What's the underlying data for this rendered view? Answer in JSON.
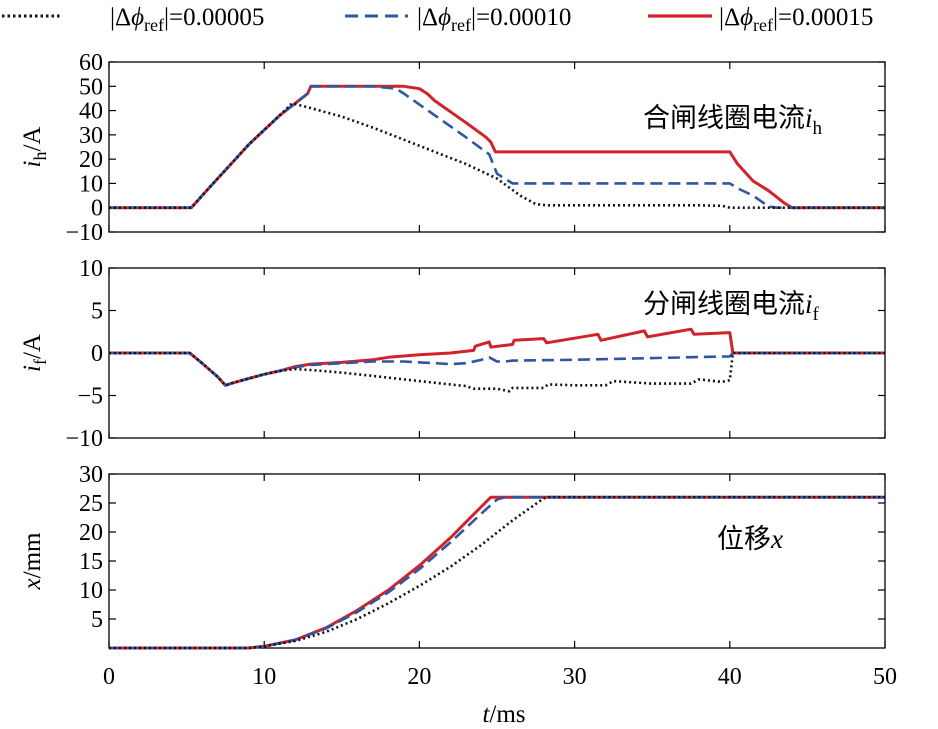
{
  "legend": {
    "items": [
      {
        "prefix": "|Δ",
        "phi": "ϕ",
        "sub": "ref",
        "suffix": "|=0.00005",
        "color": "#111111",
        "style": "dotted"
      },
      {
        "prefix": "|Δ",
        "phi": "ϕ",
        "sub": "ref",
        "suffix": "|=0.00010",
        "color": "#2e57a2",
        "style": "dashed"
      },
      {
        "prefix": "|Δ",
        "phi": "ϕ",
        "sub": "ref",
        "suffix": "|=0.00015",
        "color": "#d0232a",
        "style": "solid"
      }
    ]
  },
  "chart_data": [
    {
      "type": "line",
      "ylabel_main": "i",
      "ylabel_sub": "h",
      "ylabel_unit": "/A",
      "annotation_text": "合闸线圈电流",
      "annotation_var": "i",
      "annotation_sub": "h",
      "xlim": [
        0,
        50
      ],
      "ylim": [
        -10,
        60
      ],
      "yticks": [
        "−10",
        "0",
        "10",
        "20",
        "30",
        "40",
        "50",
        "60"
      ],
      "ytick_values": [
        -10,
        0,
        10,
        20,
        30,
        40,
        50,
        60
      ],
      "grid": false,
      "series": [
        {
          "x": [
            0,
            5.3,
            6,
            7,
            8,
            9,
            10,
            11,
            11.8,
            13,
            15,
            17,
            19,
            21,
            23,
            25,
            26.5,
            27.5,
            28.2,
            30,
            35,
            38,
            39.5,
            40,
            40.3,
            42,
            50
          ],
          "y": [
            0,
            0,
            5,
            12,
            19,
            26,
            32,
            38,
            43,
            41,
            37.5,
            33,
            28,
            23,
            18,
            12,
            5,
            1.5,
            1,
            1,
            1,
            1,
            0.8,
            0,
            0,
            0,
            0
          ]
        },
        {
          "x": [
            0,
            5.3,
            6,
            7,
            8,
            9,
            10,
            11,
            12,
            12.8,
            13,
            15,
            17,
            18.5,
            19,
            21,
            23,
            24.5,
            25,
            26,
            30,
            35,
            40,
            40.5,
            41.5,
            42.5,
            43,
            50
          ],
          "y": [
            0,
            0,
            5,
            12,
            19,
            26,
            32,
            38,
            43,
            47,
            50,
            50,
            50,
            49,
            47,
            38,
            29,
            22,
            14,
            10,
            10,
            10,
            10,
            8,
            5,
            0.5,
            0,
            0
          ]
        },
        {
          "x": [
            0,
            5.3,
            6,
            7,
            8,
            9,
            10,
            11,
            12,
            12.8,
            13,
            15,
            17,
            19,
            20,
            20.5,
            21,
            23,
            24.3,
            24.6,
            24.9,
            25.5,
            30,
            35,
            40,
            40.5,
            41.5,
            42.5,
            43.5,
            44,
            50
          ],
          "y": [
            0,
            0,
            5,
            12,
            19,
            26,
            32,
            38,
            43,
            47,
            50,
            50,
            50,
            50,
            49,
            47,
            44,
            35,
            29,
            27,
            23,
            23,
            23,
            23,
            23,
            18,
            11,
            7,
            2,
            0,
            0
          ]
        }
      ]
    },
    {
      "type": "line",
      "ylabel_main": "i",
      "ylabel_sub": "f",
      "ylabel_unit": "/A",
      "annotation_text": "分闸线圈电流",
      "annotation_var": "i",
      "annotation_sub": "f",
      "xlim": [
        0,
        50
      ],
      "ylim": [
        -10,
        10
      ],
      "yticks": [
        "−10",
        "−5",
        "0",
        "5",
        "10"
      ],
      "ytick_values": [
        -10,
        -5,
        0,
        5,
        10
      ],
      "grid": false,
      "series": [
        {
          "x": [
            0,
            5.2,
            6,
            7,
            7.5,
            8,
            9,
            10,
            11,
            12,
            13,
            15,
            17,
            19,
            21,
            23,
            23.5,
            25,
            25.8,
            26,
            28,
            28.3,
            30,
            32,
            32.5,
            35,
            37.5,
            38,
            39.5,
            40,
            40.2,
            42,
            50
          ],
          "y": [
            0,
            0,
            -1.2,
            -2.8,
            -3.8,
            -3.5,
            -3,
            -2.5,
            -2.1,
            -1.9,
            -2,
            -2.3,
            -2.7,
            -3.1,
            -3.5,
            -3.9,
            -4.2,
            -4.2,
            -4.5,
            -4.1,
            -4.1,
            -3.7,
            -3.8,
            -3.8,
            -3.3,
            -3.6,
            -3.6,
            -3.1,
            -3.4,
            -3.2,
            0,
            0,
            0
          ]
        },
        {
          "x": [
            0,
            5.2,
            6,
            7,
            7.5,
            8,
            9,
            10,
            11,
            12,
            13,
            15,
            17,
            19,
            21,
            22,
            23,
            24,
            24.5,
            25,
            25.5,
            26,
            30,
            35,
            40,
            40.2,
            42,
            50
          ],
          "y": [
            0,
            0,
            -1.2,
            -2.8,
            -3.8,
            -3.5,
            -3,
            -2.5,
            -2.1,
            -1.7,
            -1.4,
            -1.2,
            -1,
            -1,
            -1.2,
            -1.3,
            -1.2,
            -0.8,
            -0.5,
            -1,
            -1,
            -0.9,
            -0.8,
            -0.6,
            -0.4,
            0,
            0,
            0
          ]
        },
        {
          "x": [
            0,
            5.2,
            6,
            7,
            7.5,
            8,
            9,
            10,
            11,
            12,
            13,
            15,
            17,
            18,
            20,
            22,
            23.5,
            23.6,
            24.5,
            24.6,
            26,
            26.1,
            28,
            28.2,
            31.5,
            31.7,
            34.5,
            34.7,
            37.5,
            37.7,
            40,
            40.2,
            42,
            50
          ],
          "y": [
            0,
            0,
            -1.2,
            -2.8,
            -3.8,
            -3.5,
            -3,
            -2.5,
            -2.1,
            -1.6,
            -1.3,
            -1.1,
            -0.8,
            -0.5,
            -0.2,
            0,
            0.3,
            0.8,
            1.3,
            0.7,
            1,
            1.5,
            1.7,
            1.2,
            2.2,
            1.5,
            2.6,
            1.9,
            2.8,
            2.2,
            2.4,
            0,
            0,
            0
          ]
        }
      ]
    },
    {
      "type": "line",
      "ylabel_main": "x",
      "ylabel_sub": "",
      "ylabel_unit": "/mm",
      "annotation_text": "位移",
      "annotation_var": "x",
      "annotation_sub": "",
      "xlim": [
        0,
        50
      ],
      "ylim": [
        0,
        30
      ],
      "yticks": [
        "5",
        "10",
        "15",
        "20",
        "25",
        "30"
      ],
      "ytick_values": [
        5,
        10,
        15,
        20,
        25,
        30
      ],
      "grid": false,
      "series": [
        {
          "x": [
            0,
            9,
            10,
            12,
            14,
            16,
            18,
            20,
            22,
            24,
            26,
            28,
            28.3,
            50
          ],
          "y": [
            0,
            0,
            0.3,
            1.2,
            2.8,
            5,
            7.7,
            10.7,
            14,
            17.8,
            22,
            25.8,
            26,
            26
          ]
        },
        {
          "x": [
            0,
            9,
            10,
            12,
            14,
            16,
            18,
            20,
            22,
            23,
            24,
            25,
            25.5,
            50
          ],
          "y": [
            0,
            0,
            0.3,
            1.4,
            3.4,
            6.2,
            9.6,
            13.6,
            18.2,
            20.7,
            23.2,
            25.6,
            26,
            26
          ]
        },
        {
          "x": [
            0,
            9,
            10,
            12,
            14,
            16,
            18,
            20,
            22,
            23,
            24,
            24.6,
            50
          ],
          "y": [
            0,
            0,
            0.3,
            1.4,
            3.5,
            6.5,
            10,
            14.2,
            19,
            21.7,
            24.4,
            26,
            26
          ]
        }
      ]
    }
  ],
  "xaxis": {
    "ticks": [
      "0",
      "10",
      "20",
      "30",
      "40",
      "50"
    ],
    "tick_values": [
      0,
      10,
      20,
      30,
      40,
      50
    ],
    "label_var": "t",
    "label_unit": "/ms"
  }
}
